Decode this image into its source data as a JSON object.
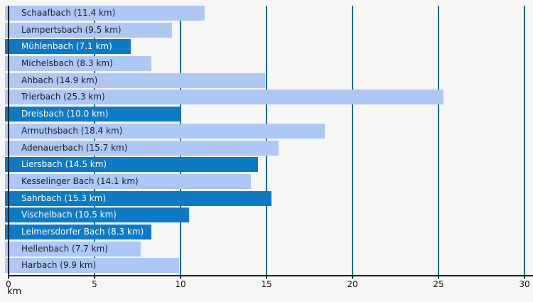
{
  "chart_data": {
    "type": "bar",
    "orientation": "horizontal",
    "title": "",
    "xlabel": "km",
    "ylabel": "",
    "xlim": [
      0,
      30
    ],
    "xticks": [
      0,
      5,
      10,
      15,
      20,
      25,
      30
    ],
    "grid": true,
    "legend": false,
    "categories": [
      "Schaafbach",
      "Lampertsbach",
      "Mühlenbach",
      "Michelsbach",
      "Ahbach",
      "Trierbach",
      "Dreisbach",
      "Armuthsbach",
      "Adenauerbach",
      "Liersbach",
      "Kesselinger Bach",
      "Sahrbach",
      "Vischelbach",
      "Leimersdorfer Bach",
      "Hellenbach",
      "Harbach"
    ],
    "values": [
      11.4,
      9.5,
      7.1,
      8.3,
      14.9,
      25.3,
      10.0,
      18.4,
      15.7,
      14.5,
      14.1,
      15.3,
      10.5,
      8.3,
      7.7,
      9.9
    ],
    "bars": [
      {
        "label": "Schaafbach (11.4 km)",
        "km": 11.4,
        "variant": "light"
      },
      {
        "label": "Lampertsbach (9.5 km)",
        "km": 9.5,
        "variant": "light"
      },
      {
        "label": "Mühlenbach (7.1 km)",
        "km": 7.1,
        "variant": "dark"
      },
      {
        "label": "Michelsbach (8.3 km)",
        "km": 8.3,
        "variant": "light"
      },
      {
        "label": "Ahbach (14.9 km)",
        "km": 14.9,
        "variant": "light"
      },
      {
        "label": "Trierbach (25.3 km)",
        "km": 25.3,
        "variant": "light"
      },
      {
        "label": "Dreisbach (10.0 km)",
        "km": 10.0,
        "variant": "dark"
      },
      {
        "label": "Armuthsbach (18.4 km)",
        "km": 18.4,
        "variant": "light"
      },
      {
        "label": "Adenauerbach (15.7 km)",
        "km": 15.7,
        "variant": "light"
      },
      {
        "label": "Liersbach (14.5 km)",
        "km": 14.5,
        "variant": "dark"
      },
      {
        "label": "Kesselinger Bach (14.1 km)",
        "km": 14.1,
        "variant": "light"
      },
      {
        "label": "Sahrbach (15.3 km)",
        "km": 15.3,
        "variant": "dark"
      },
      {
        "label": "Vischelbach (10.5 km)",
        "km": 10.5,
        "variant": "dark"
      },
      {
        "label": "Leimersdorfer Bach (8.3 km)",
        "km": 8.3,
        "variant": "dark"
      },
      {
        "label": "Hellenbach (7.7 km)",
        "km": 7.7,
        "variant": "light"
      },
      {
        "label": "Harbach (9.9 km)",
        "km": 9.9,
        "variant": "light"
      }
    ],
    "colors": {
      "bar_light": "#aec8f6",
      "bar_dark": "#0d7ac6",
      "label_on_light": "#1a1a24",
      "label_on_dark": "#ffffff",
      "gridline": "#15688f",
      "axis": "#20202e",
      "tick_text": "#111111",
      "background": "#f6f6f5"
    }
  }
}
